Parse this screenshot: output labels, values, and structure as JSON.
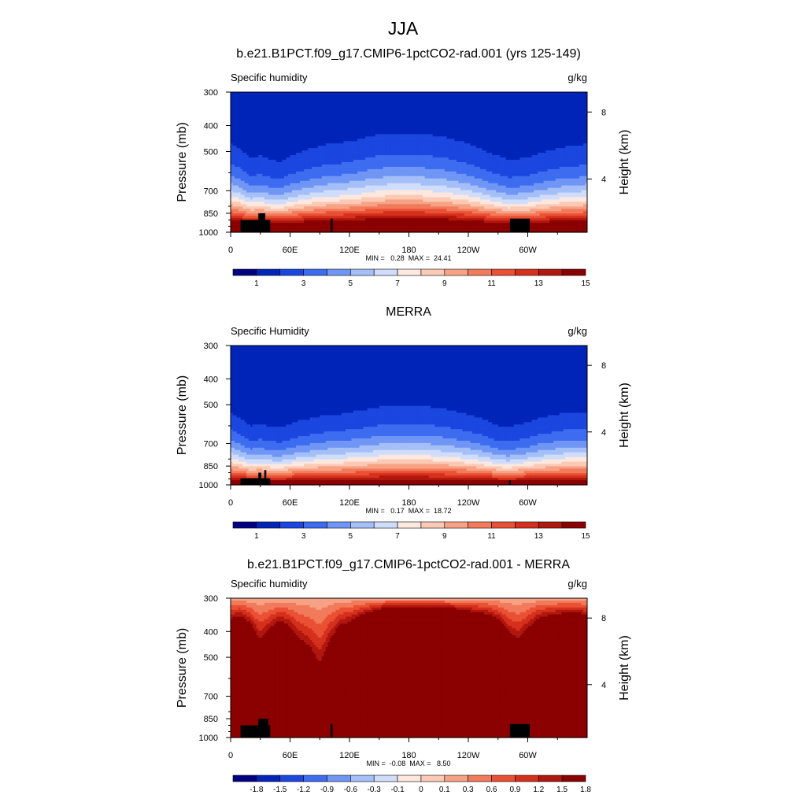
{
  "figure": {
    "title": "JJA"
  },
  "colors": {
    "positive": [
      "#000080",
      "#0024b8",
      "#1b47e0",
      "#3d6cf0",
      "#7096f5",
      "#a5bff8",
      "#d0ddfa",
      "#fde8df",
      "#fbc9b4",
      "#f7a285",
      "#f27b5c",
      "#ea5034",
      "#d5301d",
      "#b0170e",
      "#8b0000"
    ],
    "difference": [
      "#000080",
      "#0024b8",
      "#1b47e0",
      "#3d6cf0",
      "#7096f5",
      "#a5bff8",
      "#d0ddfa",
      "#fde8df",
      "#fbc9b4",
      "#f7a285",
      "#f27b5c",
      "#ea5034",
      "#d5301d",
      "#b0170e",
      "#8b0000"
    ],
    "missing": "#000000"
  },
  "chart_data": [
    {
      "type": "heatmap",
      "title": "b.e21.B1PCT.f09_g17.CMIP6-1pctCO2-rad.001 (yrs 125-149)",
      "left_label": "Specific humidity",
      "right_label": "g/kg",
      "xlabel": "",
      "ylabel": "Pressure (mb)",
      "ylabel_right": "Height (km)",
      "x_ticks": [
        "0",
        "60E",
        "120E",
        "180",
        "120W",
        "60W"
      ],
      "x_tick_values": [
        0,
        60,
        120,
        180,
        240,
        300
      ],
      "xlim": [
        0,
        360
      ],
      "y_ticks": [
        "300",
        "400",
        "500",
        "700",
        "850",
        "1000"
      ],
      "y_tick_values": [
        300,
        400,
        500,
        700,
        850,
        1000
      ],
      "ylim": [
        300,
        1000
      ],
      "y_scale": "log",
      "right_ticks": [
        "8",
        "4"
      ],
      "right_tick_pressures": [
        356,
        633
      ],
      "stats": "MIN =   0.28  MAX =  24.41",
      "colorbar_ticks": [
        "1",
        "3",
        "5",
        "7",
        "9",
        "11",
        "13",
        "15"
      ],
      "colorbar_levels": [
        0,
        1,
        2,
        3,
        4,
        5,
        6,
        7,
        8,
        9,
        10,
        11,
        12,
        13,
        14,
        15
      ],
      "palette": "positive",
      "field": {
        "lon": [
          0,
          10,
          20,
          30,
          40,
          50,
          60,
          70,
          80,
          90,
          100,
          110,
          120,
          130,
          140,
          150,
          160,
          170,
          180,
          190,
          200,
          210,
          220,
          230,
          240,
          250,
          260,
          270,
          280,
          290,
          300,
          310,
          320,
          330,
          340,
          350,
          360
        ],
        "wet": [
          0.55,
          0.45,
          0.25,
          0.3,
          0.2,
          0.15,
          0.3,
          0.38,
          0.45,
          0.5,
          0.55,
          0.55,
          0.6,
          0.62,
          0.68,
          0.7,
          0.72,
          0.72,
          0.72,
          0.72,
          0.7,
          0.68,
          0.65,
          0.6,
          0.55,
          0.48,
          0.38,
          0.3,
          0.2,
          0.22,
          0.25,
          0.35,
          0.4,
          0.45,
          0.5,
          0.5,
          0.55
        ],
        "top_q": 0.4,
        "surface_q": 18.5,
        "exponent": 2.2
      },
      "missing_boxes": [
        [
          10,
          40,
          900,
          1000
        ],
        [
          28,
          35,
          850,
          900
        ],
        [
          101,
          103,
          890,
          1000
        ],
        [
          282,
          302,
          890,
          1000
        ]
      ]
    },
    {
      "type": "heatmap",
      "title": "MERRA",
      "left_label": "Specific Humidity",
      "right_label": "g/kg",
      "xlabel": "",
      "ylabel": "Pressure (mb)",
      "ylabel_right": "Height (km)",
      "x_ticks": [
        "0",
        "60E",
        "120E",
        "180",
        "120W",
        "60W"
      ],
      "x_tick_values": [
        0,
        60,
        120,
        180,
        240,
        300
      ],
      "xlim": [
        0,
        360
      ],
      "y_ticks": [
        "300",
        "400",
        "500",
        "700",
        "850",
        "1000"
      ],
      "y_tick_values": [
        300,
        400,
        500,
        700,
        850,
        1000
      ],
      "ylim": [
        300,
        1000
      ],
      "y_scale": "log",
      "right_ticks": [
        "8",
        "4"
      ],
      "right_tick_pressures": [
        356,
        633
      ],
      "stats": "MIN =   0.17  MAX =  18.72",
      "colorbar_ticks": [
        "1",
        "3",
        "5",
        "7",
        "9",
        "11",
        "13",
        "15"
      ],
      "colorbar_levels": [
        0,
        1,
        2,
        3,
        4,
        5,
        6,
        7,
        8,
        9,
        10,
        11,
        12,
        13,
        14,
        15
      ],
      "palette": "positive",
      "field": {
        "lon": [
          0,
          10,
          20,
          30,
          40,
          50,
          60,
          70,
          80,
          90,
          100,
          110,
          120,
          130,
          140,
          150,
          160,
          170,
          180,
          190,
          200,
          210,
          220,
          230,
          240,
          250,
          260,
          270,
          280,
          290,
          300,
          310,
          320,
          330,
          340,
          350,
          360
        ],
        "wet": [
          0.5,
          0.35,
          0.15,
          0.2,
          0.12,
          0.08,
          0.2,
          0.3,
          0.35,
          0.4,
          0.45,
          0.45,
          0.5,
          0.52,
          0.56,
          0.6,
          0.62,
          0.62,
          0.62,
          0.62,
          0.6,
          0.58,
          0.55,
          0.5,
          0.45,
          0.38,
          0.28,
          0.15,
          0.1,
          0.18,
          0.25,
          0.35,
          0.4,
          0.45,
          0.5,
          0.5,
          0.5
        ],
        "top_q": 0.25,
        "surface_q": 15.5,
        "exponent": 2.4
      },
      "missing_boxes": [
        [
          10,
          40,
          945,
          1000
        ],
        [
          28,
          31,
          900,
          945
        ],
        [
          34,
          36,
          880,
          945
        ],
        [
          281,
          283,
          960,
          1000
        ]
      ]
    },
    {
      "type": "heatmap",
      "title": "b.e21.B1PCT.f09_g17.CMIP6-1pctCO2-rad.001 - MERRA",
      "left_label": "Specific humidity",
      "right_label": "g/kg",
      "xlabel": "",
      "ylabel": "Pressure (mb)",
      "ylabel_right": "Height (km)",
      "x_ticks": [
        "0",
        "60E",
        "120E",
        "180",
        "120W",
        "60W"
      ],
      "x_tick_values": [
        0,
        60,
        120,
        180,
        240,
        300
      ],
      "xlim": [
        0,
        360
      ],
      "y_ticks": [
        "300",
        "400",
        "500",
        "700",
        "850",
        "1000"
      ],
      "y_tick_values": [
        300,
        400,
        500,
        700,
        850,
        1000
      ],
      "ylim": [
        300,
        1000
      ],
      "y_scale": "log",
      "right_ticks": [
        "8",
        "4"
      ],
      "right_tick_pressures": [
        356,
        633
      ],
      "stats": "MIN =  -0.08  MAX =   8.50",
      "colorbar_ticks": [
        "-1.8",
        "-1.5",
        "-1.2",
        "-0.9",
        "-0.6",
        "-0.3",
        "-0.1",
        "0",
        "0.1",
        "0.3",
        "0.6",
        "0.9",
        "1.2",
        "1.5",
        "1.8"
      ],
      "colorbar_levels": [
        -1.8,
        -1.5,
        -1.2,
        -0.9,
        -0.6,
        -0.3,
        -0.1,
        0,
        0.1,
        0.3,
        0.6,
        0.9,
        1.2,
        1.5,
        1.8
      ],
      "palette": "difference",
      "field": {
        "lon": [
          0,
          10,
          20,
          30,
          40,
          50,
          60,
          70,
          80,
          90,
          100,
          110,
          120,
          130,
          140,
          150,
          160,
          170,
          180,
          190,
          200,
          210,
          220,
          230,
          240,
          250,
          260,
          270,
          280,
          290,
          300,
          310,
          320,
          330,
          340,
          350,
          360
        ],
        "p_sat": [
          420,
          400,
          450,
          560,
          480,
          430,
          470,
          560,
          620,
          760,
          560,
          460,
          440,
          400,
          380,
          360,
          350,
          350,
          350,
          350,
          350,
          350,
          355,
          360,
          370,
          380,
          390,
          420,
          500,
          560,
          480,
          420,
          400,
          390,
          380,
          380,
          400
        ],
        "top_q": 0.1,
        "surface_q": 3.0
      },
      "missing_boxes": [
        [
          10,
          40,
          900,
          1000
        ],
        [
          28,
          38,
          850,
          900
        ],
        [
          101,
          103,
          890,
          1000
        ],
        [
          282,
          302,
          890,
          1000
        ]
      ]
    }
  ]
}
